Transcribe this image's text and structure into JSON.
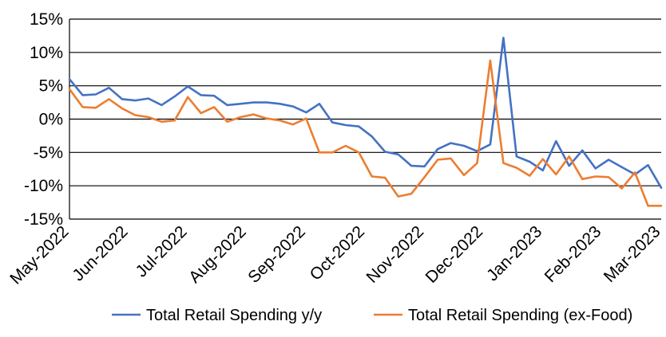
{
  "chart_data": {
    "type": "line",
    "title": "",
    "xlabel": "",
    "ylabel": "",
    "ylim": [
      -15,
      15
    ],
    "y_ticks": [
      "15%",
      "10%",
      "5%",
      "0%",
      "-5%",
      "-10%",
      "-15%"
    ],
    "y_tick_values": [
      15,
      10,
      5,
      0,
      -5,
      -10,
      -15
    ],
    "x_tick_labels": [
      "May-2022",
      "Jun-2022",
      "Jul-2022",
      "Aug-2022",
      "Sep-2022",
      "Oct-2022",
      "Nov-2022",
      "Dec-2022",
      "Jan-2023",
      "Feb-2023",
      "Mar-2023"
    ],
    "x_tick_index": [
      0,
      4.5,
      9,
      13.5,
      18,
      22.5,
      27,
      31.5,
      36,
      40.5,
      45
    ],
    "x_count": 46,
    "grid": "horizontal",
    "legend_position": "bottom",
    "series": [
      {
        "name": "Total Retail Spending y/y",
        "color": "#4472C4",
        "values": [
          6.0,
          3.6,
          3.7,
          4.7,
          3.0,
          2.8,
          3.1,
          2.1,
          3.4,
          4.9,
          3.6,
          3.5,
          2.1,
          2.3,
          2.5,
          2.5,
          2.3,
          1.9,
          1.0,
          2.3,
          -0.5,
          -0.9,
          -1.1,
          -2.6,
          -4.9,
          -5.3,
          -7.0,
          -7.1,
          -4.5,
          -3.6,
          -4.0,
          -4.8,
          -3.8,
          12.2,
          -5.6,
          -6.4,
          -7.7,
          -3.3,
          -7.0,
          -4.7,
          -7.4,
          -6.1,
          -7.2,
          -8.3,
          -6.9,
          -10.3
        ]
      },
      {
        "name": "Total Retail Spending (ex-Food)",
        "color": "#ED7D31",
        "values": [
          4.5,
          1.8,
          1.7,
          3.0,
          1.6,
          0.6,
          0.3,
          -0.4,
          -0.2,
          3.3,
          0.9,
          1.8,
          -0.4,
          0.3,
          0.7,
          0.1,
          -0.2,
          -0.8,
          0.1,
          -5.0,
          -5.0,
          -4.0,
          -5.0,
          -8.6,
          -8.8,
          -11.6,
          -11.2,
          -8.7,
          -6.1,
          -5.9,
          -8.4,
          -6.6,
          8.8,
          -6.6,
          -7.3,
          -8.5,
          -6.0,
          -8.3,
          -5.6,
          -9.0,
          -8.6,
          -8.7,
          -10.4,
          -8.0,
          -13.0,
          -13.0
        ]
      }
    ]
  }
}
